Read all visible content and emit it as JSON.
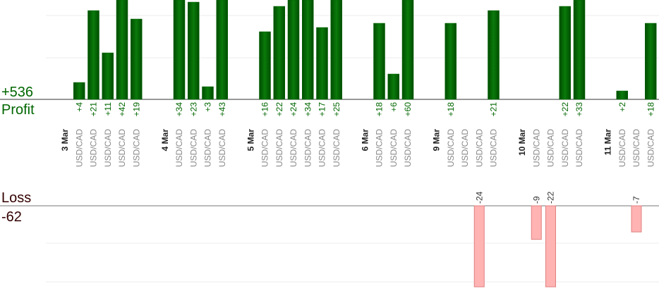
{
  "chart_data": {
    "type": "bar",
    "profit_total": {
      "value": 536,
      "label": "+536"
    },
    "profit_label": "Profit",
    "loss_label": "Loss",
    "loss_total": -62,
    "days": [
      {
        "label": "3 Mar",
        "categories": [
          "USD/CAD",
          "USD/CAD",
          "USD/CAD",
          "USD/CAD",
          "USD/CAD"
        ],
        "values": [
          4,
          21,
          11,
          42,
          19
        ],
        "value_labels": [
          "+4",
          "+21",
          "+11",
          "+42",
          "+19"
        ]
      },
      {
        "label": "4 Mar",
        "categories": [
          "USD/CAD",
          "USD/CAD",
          "USD/CAD",
          "USD/CAD"
        ],
        "values": [
          34,
          23,
          3,
          43
        ],
        "value_labels": [
          "+34",
          "+23",
          "+3",
          "+43"
        ]
      },
      {
        "label": "5 Mar",
        "categories": [
          "USD/CAD",
          "USD/CAD",
          "USD/CAD",
          "USD/CAD",
          "USD/CAD",
          "USD/CAD"
        ],
        "values": [
          16,
          22,
          24,
          34,
          17,
          25
        ],
        "value_labels": [
          "+16",
          "+22",
          "+24",
          "+34",
          "+17",
          "+25"
        ]
      },
      {
        "label": "6 Mar",
        "categories": [
          "USD/CAD",
          "USD/CAD",
          "USD/CAD"
        ],
        "values": [
          18,
          6,
          60
        ],
        "value_labels": [
          "+18",
          "+6",
          "+60"
        ]
      },
      {
        "label": "9 Mar",
        "categories": [
          "USD/CAD",
          "USD/CAD",
          "USD/CAD",
          "USD/CAD"
        ],
        "values": [
          18,
          null,
          -24,
          21
        ],
        "value_labels": [
          "+18",
          null,
          "-24",
          "+21"
        ]
      },
      {
        "label": "10 Mar",
        "categories": [
          "USD/CAD",
          "USD/CAD",
          "USD/CAD",
          "USD/CAD"
        ],
        "values": [
          -9,
          -22,
          22,
          33
        ],
        "value_labels": [
          "-9",
          "-22",
          "+22",
          "+33"
        ]
      },
      {
        "label": "11 Mar",
        "categories": [
          "USD/CAD",
          "USD/CAD",
          "USD/CAD"
        ],
        "values": [
          2,
          -7,
          18
        ],
        "value_labels": [
          "+2",
          "-7",
          "+18"
        ]
      }
    ],
    "profit_color": "#006600",
    "loss_color": "#ffb3b3"
  }
}
